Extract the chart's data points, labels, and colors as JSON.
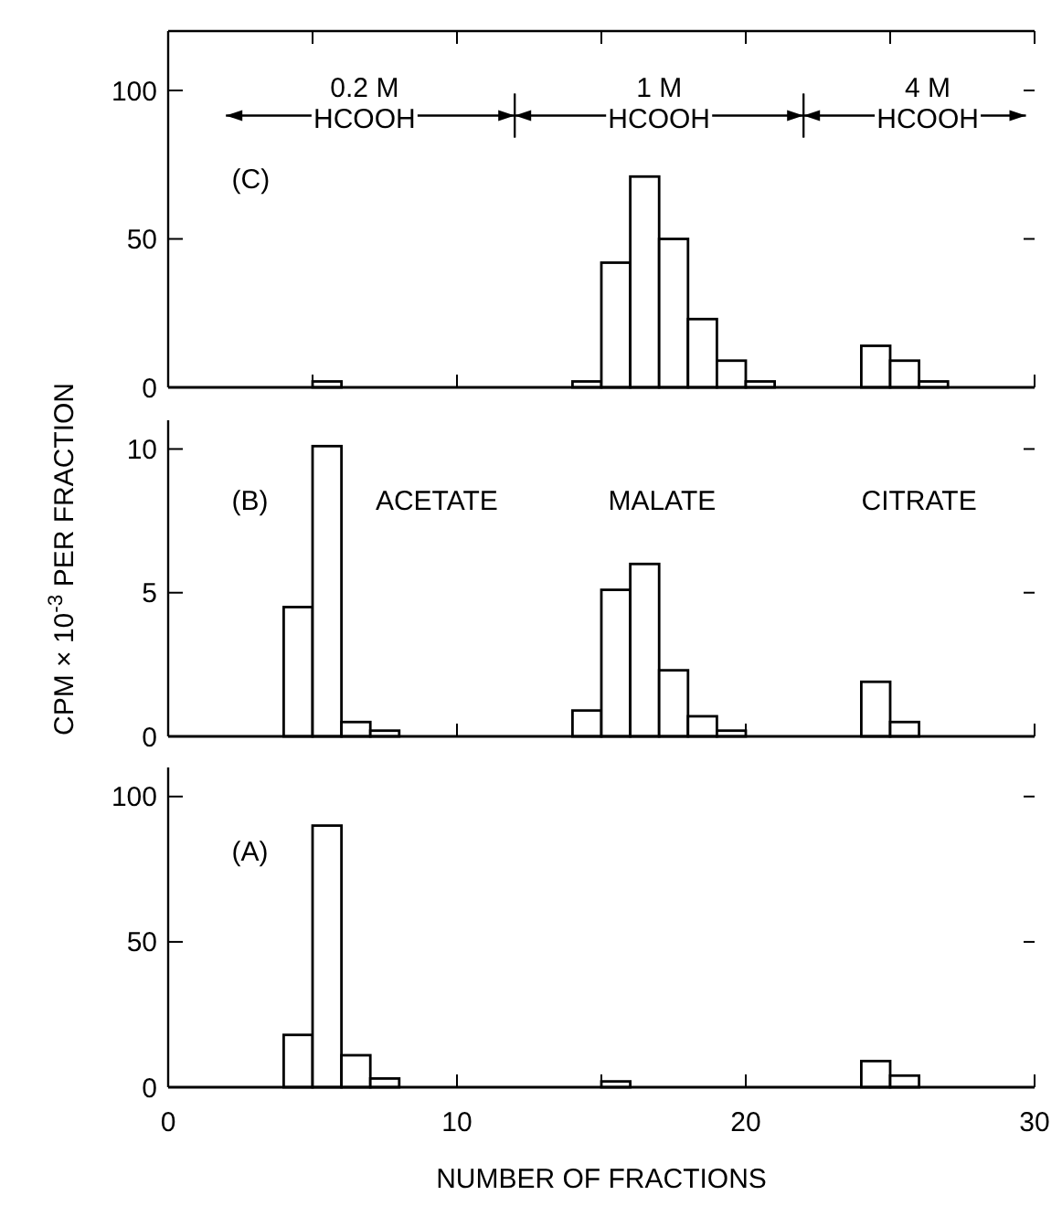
{
  "chart_data": [
    {
      "type": "histogram",
      "color": "#000000",
      "bins": [
        0,
        1,
        2,
        3,
        4,
        5,
        6,
        7,
        8,
        9,
        10,
        11,
        12,
        13,
        14,
        15,
        16,
        17,
        18,
        19,
        20,
        21,
        22,
        23,
        24,
        25,
        26,
        27,
        28,
        29,
        30
      ],
      "values": [
        0,
        0,
        0,
        0,
        0,
        2,
        0,
        0,
        0,
        0,
        0,
        0,
        0,
        0,
        2,
        42,
        71,
        50,
        23,
        9,
        2,
        0,
        0,
        0,
        14,
        9,
        2,
        0,
        0,
        0
      ],
      "xlim": [
        0,
        30
      ],
      "xticks": [
        0,
        {
          "value": 5,
          "label": null
        },
        10,
        {
          "value": 15,
          "label": null
        },
        20,
        {
          "value": 25,
          "label": null
        },
        30
      ],
      "ylim": [
        0,
        120
      ],
      "yticks": [
        0,
        50,
        100
      ],
      "tick_labels": "y",
      "annotations": [
        "(C)",
        "0.2 M\nHCOOH",
        "1 M\nHCOOH",
        "4 M\nHCOOH"
      ]
    },
    {
      "type": "histogram",
      "color": "#000000",
      "bins": [
        0,
        1,
        2,
        3,
        4,
        5,
        6,
        7,
        8,
        9,
        10,
        11,
        12,
        13,
        14,
        15,
        16,
        17,
        18,
        19,
        20,
        21,
        22,
        23,
        24,
        25,
        26,
        27,
        28,
        29,
        30
      ],
      "values": [
        0,
        0,
        0,
        0,
        4.5,
        10.1,
        0.5,
        0.2,
        0,
        0,
        0,
        0,
        0,
        0,
        0.9,
        5.1,
        6.0,
        2.3,
        0.7,
        0.2,
        0,
        0,
        0,
        0,
        1.9,
        0.5,
        0,
        0,
        0,
        0
      ],
      "xlim": [
        0,
        30
      ],
      "xticks": [
        0,
        {
          "value": 5,
          "label": null
        },
        10,
        {
          "value": 15,
          "label": null
        },
        20,
        {
          "value": 25,
          "label": null
        },
        30
      ],
      "ylim": [
        0,
        11
      ],
      "yticks": [
        0,
        5,
        10
      ],
      "tick_labels": "y",
      "ylabel": "CPM × 10$^{-3}$ PER FRACTION",
      "annotations": [
        "(B)",
        "ACETATE",
        "MALATE",
        "CITRATE"
      ]
    },
    {
      "type": "histogram",
      "color": "#000000",
      "bins": [
        0,
        1,
        2,
        3,
        4,
        5,
        6,
        7,
        8,
        9,
        10,
        11,
        12,
        13,
        14,
        15,
        16,
        17,
        18,
        19,
        20,
        21,
        22,
        23,
        24,
        25,
        26,
        27,
        28,
        29,
        30
      ],
      "values": [
        0,
        0,
        0,
        0,
        18,
        90,
        11,
        3,
        0,
        0,
        0,
        0,
        0,
        0,
        0,
        2,
        0,
        0,
        0,
        0,
        0,
        0,
        0,
        0,
        9,
        4,
        0,
        0,
        0,
        0
      ],
      "xlim": [
        0,
        30
      ],
      "xticks": [
        0,
        {
          "value": 5,
          "label": null
        },
        10,
        {
          "value": 15,
          "label": null
        },
        20,
        {
          "value": 25,
          "label": null
        },
        30
      ],
      "ylim": [
        0,
        110
      ],
      "yticks": [
        0,
        50,
        100
      ],
      "xlabel": "NUMBER OF FRACTIONS",
      "annotations": [
        "(A)"
      ]
    }
  ]
}
